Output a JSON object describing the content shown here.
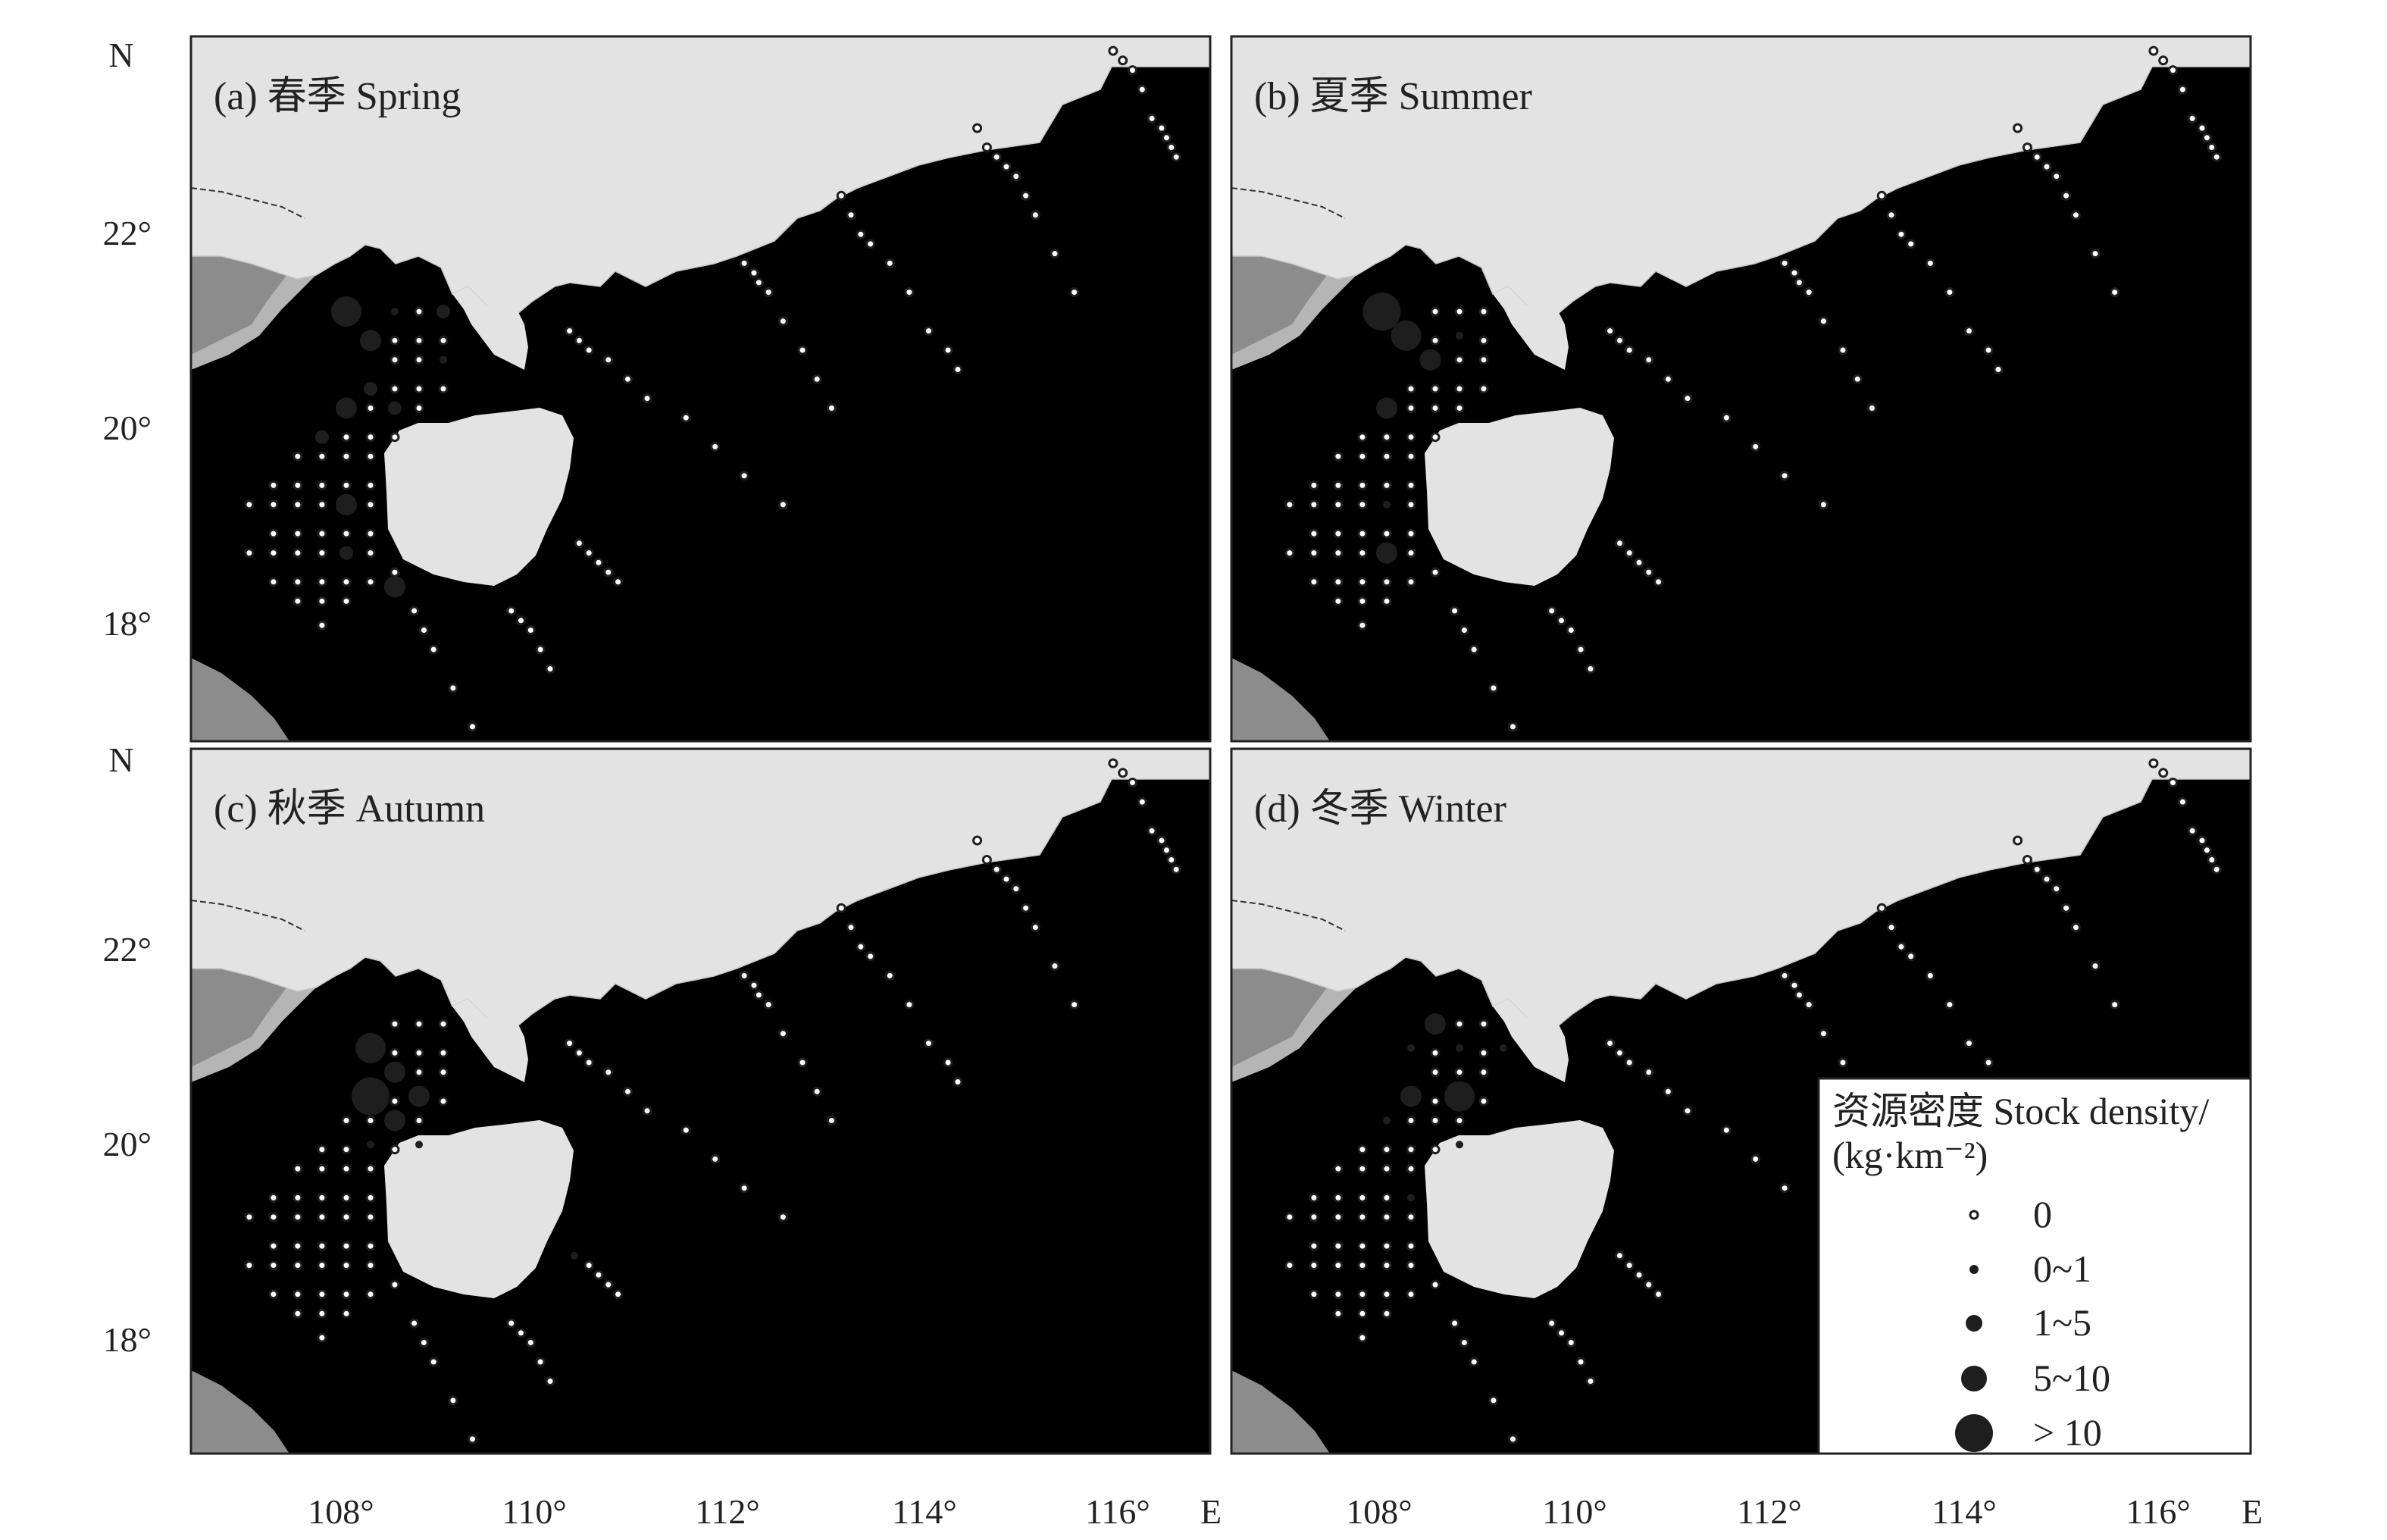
{
  "panels": [
    {
      "label": "(a) 春季 Spring"
    },
    {
      "label": "(b) 夏季 Summer"
    },
    {
      "label": "(c) 秋季 Autumn"
    },
    {
      "label": "(d) 冬季 Winter"
    }
  ],
  "axes": {
    "lat_ticks": [
      "22°",
      "20°",
      "18°"
    ],
    "lon_ticks": [
      "108°",
      "110°",
      "112°",
      "114°",
      "116°"
    ],
    "north_label": "N",
    "east_label": "E"
  },
  "legend": {
    "title_line1": "资源密度 Stock density/",
    "title_line2": "(kg·km⁻²)",
    "items": [
      {
        "label": "0",
        "symbol": "open-circle"
      },
      {
        "label": "0~1",
        "symbol": "dot-tiny"
      },
      {
        "label": "1~5",
        "symbol": "dot-small"
      },
      {
        "label": "5~10",
        "symbol": "dot-medium"
      },
      {
        "label": "> 10",
        "symbol": "dot-large"
      }
    ]
  },
  "colors": {
    "sea": "#ffffff",
    "land_china": "#e3e3e3",
    "land_vietnam": "#8c8c8c",
    "shelf_band": "#b5b5b5",
    "frame": "#222222",
    "dot": "#1e1e1e"
  },
  "stations": {
    "transects_east": [
      [
        [
          110.4,
          21.1
        ],
        [
          110.5,
          21.0
        ],
        [
          110.6,
          20.9
        ],
        [
          110.8,
          20.8
        ],
        [
          111.0,
          20.6
        ],
        [
          111.2,
          20.4
        ],
        [
          111.6,
          20.2
        ],
        [
          111.9,
          19.9
        ],
        [
          112.2,
          19.6
        ],
        [
          112.6,
          19.3
        ]
      ],
      [
        [
          112.2,
          21.8
        ],
        [
          112.3,
          21.7
        ],
        [
          112.35,
          21.6
        ],
        [
          112.45,
          21.5
        ],
        [
          112.6,
          21.2
        ],
        [
          112.8,
          20.9
        ],
        [
          112.95,
          20.6
        ],
        [
          113.1,
          20.3
        ]
      ],
      [
        [
          113.2,
          22.5
        ],
        [
          113.3,
          22.3
        ],
        [
          113.4,
          22.1
        ],
        [
          113.5,
          22.0
        ],
        [
          113.7,
          21.8
        ],
        [
          113.9,
          21.5
        ],
        [
          114.1,
          21.1
        ],
        [
          114.3,
          20.9
        ],
        [
          114.4,
          20.7
        ]
      ],
      [
        [
          114.6,
          23.2
        ],
        [
          114.7,
          23.0
        ],
        [
          114.8,
          22.9
        ],
        [
          114.9,
          22.8
        ],
        [
          115.0,
          22.7
        ],
        [
          115.1,
          22.5
        ],
        [
          115.2,
          22.3
        ],
        [
          115.4,
          21.9
        ],
        [
          115.6,
          21.5
        ]
      ],
      [
        [
          116.0,
          24.0
        ],
        [
          116.1,
          23.9
        ],
        [
          116.2,
          23.8
        ],
        [
          116.3,
          23.6
        ],
        [
          116.4,
          23.3
        ],
        [
          116.5,
          23.2
        ],
        [
          116.55,
          23.1
        ],
        [
          116.6,
          23.0
        ],
        [
          116.65,
          22.9
        ]
      ],
      [
        [
          110.5,
          18.9
        ],
        [
          110.6,
          18.8
        ],
        [
          110.7,
          18.7
        ],
        [
          110.8,
          18.6
        ],
        [
          110.9,
          18.5
        ]
      ],
      [
        [
          109.8,
          18.2
        ],
        [
          109.9,
          18.1
        ],
        [
          110.0,
          18.0
        ],
        [
          110.1,
          17.8
        ],
        [
          110.2,
          17.6
        ]
      ],
      [
        [
          108.6,
          18.6
        ],
        [
          108.8,
          18.2
        ],
        [
          108.9,
          18.0
        ],
        [
          109.0,
          17.8
        ],
        [
          109.2,
          17.4
        ],
        [
          109.4,
          17.0
        ]
      ]
    ],
    "grid_gulf": [
      [
        108.6,
        21.3
      ],
      [
        108.85,
        21.3
      ],
      [
        109.1,
        21.3
      ],
      [
        108.6,
        21.0
      ],
      [
        108.85,
        21.0
      ],
      [
        109.1,
        21.0
      ],
      [
        108.6,
        20.8
      ],
      [
        108.85,
        20.8
      ],
      [
        109.1,
        20.8
      ],
      [
        108.35,
        20.5
      ],
      [
        108.6,
        20.5
      ],
      [
        108.85,
        20.5
      ],
      [
        109.1,
        20.5
      ],
      [
        108.1,
        20.3
      ],
      [
        108.35,
        20.3
      ],
      [
        108.6,
        20.3
      ],
      [
        108.85,
        20.3
      ],
      [
        107.85,
        20.0
      ],
      [
        108.1,
        20.0
      ],
      [
        108.35,
        20.0
      ],
      [
        108.6,
        20.0
      ],
      [
        107.6,
        19.8
      ],
      [
        107.85,
        19.8
      ],
      [
        108.1,
        19.8
      ],
      [
        108.35,
        19.8
      ],
      [
        107.35,
        19.5
      ],
      [
        107.6,
        19.5
      ],
      [
        107.85,
        19.5
      ],
      [
        108.1,
        19.5
      ],
      [
        108.35,
        19.5
      ],
      [
        107.1,
        19.3
      ],
      [
        107.35,
        19.3
      ],
      [
        107.6,
        19.3
      ],
      [
        107.85,
        19.3
      ],
      [
        108.1,
        19.3
      ],
      [
        108.35,
        19.3
      ],
      [
        107.35,
        19.0
      ],
      [
        107.6,
        19.0
      ],
      [
        107.85,
        19.0
      ],
      [
        108.1,
        19.0
      ],
      [
        108.35,
        19.0
      ],
      [
        107.1,
        18.8
      ],
      [
        107.35,
        18.8
      ],
      [
        107.6,
        18.8
      ],
      [
        107.85,
        18.8
      ],
      [
        108.1,
        18.8
      ],
      [
        108.35,
        18.8
      ],
      [
        107.35,
        18.5
      ],
      [
        107.6,
        18.5
      ],
      [
        107.85,
        18.5
      ],
      [
        108.1,
        18.5
      ],
      [
        108.35,
        18.5
      ],
      [
        107.6,
        18.3
      ],
      [
        107.85,
        18.3
      ],
      [
        108.1,
        18.3
      ],
      [
        107.85,
        18.05
      ]
    ]
  },
  "catches": [
    [
      {
        "lon": 108.1,
        "lat": 21.3,
        "cls": 4
      },
      {
        "lon": 108.35,
        "lat": 21.0,
        "cls": 3
      },
      {
        "lon": 108.6,
        "lat": 21.3,
        "cls": 1
      },
      {
        "lon": 109.1,
        "lat": 21.3,
        "cls": 2
      },
      {
        "lon": 109.1,
        "lat": 20.8,
        "cls": 1
      },
      {
        "lon": 108.35,
        "lat": 20.5,
        "cls": 2
      },
      {
        "lon": 108.1,
        "lat": 20.3,
        "cls": 3
      },
      {
        "lon": 108.6,
        "lat": 20.3,
        "cls": 2
      },
      {
        "lon": 107.85,
        "lat": 20.0,
        "cls": 2
      },
      {
        "lon": 108.1,
        "lat": 19.3,
        "cls": 3
      },
      {
        "lon": 108.1,
        "lat": 18.8,
        "cls": 2
      },
      {
        "lon": 108.6,
        "lat": 18.45,
        "cls": 3
      }
    ],
    [
      {
        "lon": 108.05,
        "lat": 21.3,
        "cls": 5
      },
      {
        "lon": 108.3,
        "lat": 21.05,
        "cls": 4
      },
      {
        "lon": 108.55,
        "lat": 20.8,
        "cls": 3
      },
      {
        "lon": 108.85,
        "lat": 21.05,
        "cls": 1
      },
      {
        "lon": 108.1,
        "lat": 20.3,
        "cls": 3
      },
      {
        "lon": 108.1,
        "lat": 19.3,
        "cls": 1
      },
      {
        "lon": 108.1,
        "lat": 18.8,
        "cls": 3
      }
    ],
    [
      {
        "lon": 108.35,
        "lat": 21.05,
        "cls": 4
      },
      {
        "lon": 108.6,
        "lat": 20.8,
        "cls": 3
      },
      {
        "lon": 108.35,
        "lat": 20.55,
        "cls": 5
      },
      {
        "lon": 108.85,
        "lat": 20.55,
        "cls": 3
      },
      {
        "lon": 108.6,
        "lat": 20.3,
        "cls": 3
      },
      {
        "lon": 108.35,
        "lat": 20.05,
        "cls": 1
      },
      {
        "lon": 108.85,
        "lat": 20.05,
        "cls": 1
      },
      {
        "lon": 110.45,
        "lat": 18.9,
        "cls": 1
      }
    ],
    [
      {
        "lon": 108.6,
        "lat": 21.3,
        "cls": 3
      },
      {
        "lon": 108.35,
        "lat": 21.05,
        "cls": 1
      },
      {
        "lon": 108.85,
        "lat": 21.05,
        "cls": 1
      },
      {
        "lon": 109.3,
        "lat": 21.05,
        "cls": 1
      },
      {
        "lon": 108.35,
        "lat": 20.55,
        "cls": 3
      },
      {
        "lon": 108.85,
        "lat": 20.55,
        "cls": 4
      },
      {
        "lon": 108.1,
        "lat": 20.3,
        "cls": 1
      },
      {
        "lon": 108.85,
        "lat": 20.05,
        "cls": 1
      },
      {
        "lon": 108.35,
        "lat": 19.5,
        "cls": 1
      }
    ]
  ]
}
